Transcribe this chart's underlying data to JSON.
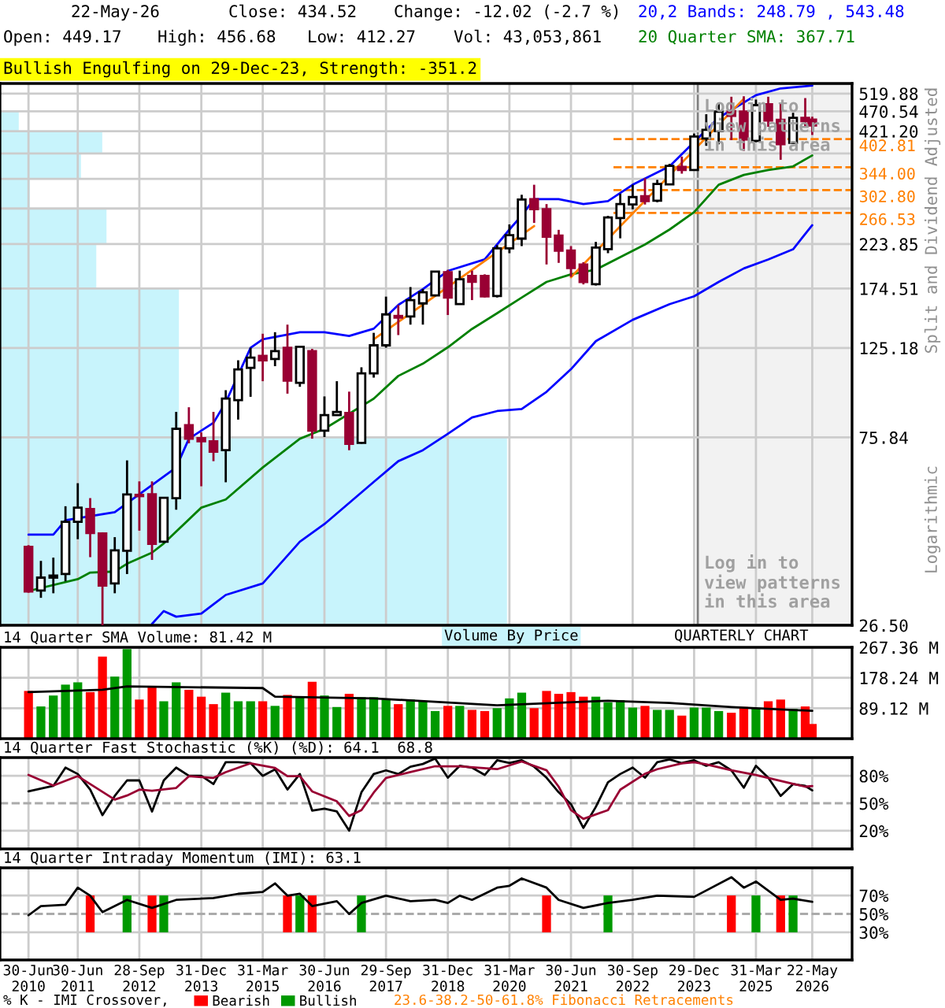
{
  "chart_data": [
    {
      "type": "candlestick",
      "log": true,
      "xlim": [
        "2009-12-01",
        "2027-03-13"
      ],
      "ylim": [
        26.5,
        550
      ],
      "yticks": [
        {
          "value": 26.5,
          "label": "26.50"
        },
        75.84,
        125.18,
        174.51,
        223.85,
        {
          "value": 273.19,
          "label": null
        },
        {
          "value": 322.53,
          "label": null
        },
        {
          "value": 371.86,
          "label": null
        },
        {
          "value": 421.2,
          "label": "421.20"
        },
        470.54,
        519.88
      ],
      "xticks": [
        "2010-06-30",
        "2011-06-30",
        "2012-09-28",
        "2013-12-31",
        "2015-03-31",
        "2016-06-30",
        "2017-09-29",
        "2018-12-31",
        "2020-03-31",
        "2021-06-30",
        "2022-09-30",
        "2023-12-29",
        "2025-03-31",
        "2026-05-22"
      ],
      "tick_labels": "y",
      "grid": true,
      "x": [
        "2010-06-30",
        "2010-09-30",
        "2010-12-31",
        "2011-03-31",
        "2011-06-30",
        "2011-09-30",
        "2011-12-30",
        "2012-03-30",
        "2012-06-29",
        "2012-09-28",
        "2012-12-31",
        "2013-03-28",
        "2013-06-28",
        "2013-09-30",
        "2013-12-31",
        "2014-03-31",
        "2014-06-30",
        "2014-09-30",
        "2014-12-31",
        "2015-03-31",
        "2015-06-30",
        "2015-09-30",
        "2015-12-31",
        "2016-03-31",
        "2016-06-30",
        "2016-09-30",
        "2016-12-30",
        "2017-03-31",
        "2017-06-30",
        "2017-09-29",
        "2017-12-29",
        "2018-03-29",
        "2018-06-29",
        "2018-09-28",
        "2018-12-31",
        "2019-03-29",
        "2019-06-28",
        "2019-09-30",
        "2019-12-31",
        "2020-03-31",
        "2020-06-30",
        "2020-09-30",
        "2020-12-31",
        "2021-03-31",
        "2021-06-30",
        "2021-09-30",
        "2021-12-31",
        "2022-03-31",
        "2022-06-30",
        "2022-09-30",
        "2022-12-30",
        "2023-03-31",
        "2023-06-30",
        "2023-09-29",
        "2023-12-29",
        "2024-03-28",
        "2024-06-28",
        "2024-09-30",
        "2024-12-31",
        "2025-03-31",
        "2025-06-30",
        "2025-09-30",
        "2025-12-31",
        "2026-03-31",
        "2026-05-22"
      ],
      "ohlc": [
        [
          41.1,
          41.5,
          31.8,
          32.0
        ],
        [
          32.2,
          38.0,
          30.9,
          34.6
        ],
        [
          34.6,
          38.7,
          31.7,
          35.0
        ],
        [
          35.3,
          51.6,
          33.9,
          47.3
        ],
        [
          47.3,
          58.7,
          42.9,
          51.2
        ],
        [
          50.8,
          54.0,
          38.8,
          44.4
        ],
        [
          44.3,
          44.6,
          26.5,
          33.1
        ],
        [
          33.5,
          43.4,
          31.7,
          40.3
        ],
        [
          40.2,
          66.7,
          35.3,
          55.1
        ],
        [
          55.0,
          59.3,
          45.0,
          54.6
        ],
        [
          55.2,
          59.3,
          38.2,
          41.8
        ],
        [
          42.3,
          54.3,
          42.0,
          54.1
        ],
        [
          54.0,
          87.5,
          50.6,
          79.6
        ],
        [
          81.2,
          89.8,
          73.4,
          75.3
        ],
        [
          75.5,
          78.0,
          57.7,
          74.2
        ],
        [
          74.2,
          87.5,
          66.4,
          70.0
        ],
        [
          70.6,
          98.8,
          59.0,
          94.3
        ],
        [
          93.4,
          116.8,
          83.8,
          111.0
        ],
        [
          112.0,
          125.3,
          95.2,
          118.5
        ],
        [
          119.7,
          135.5,
          103.9,
          116.8
        ],
        [
          117.6,
          136.7,
          113.0,
          122.9
        ],
        [
          125.3,
          142.6,
          96.9,
          104.2
        ],
        [
          103.0,
          126.5,
          100.7,
          125.9
        ],
        [
          122.9,
          124.5,
          75.3,
          78.8
        ],
        [
          78.8,
          95.4,
          76.0,
          85.9
        ],
        [
          85.9,
          103.9,
          85.6,
          87.5
        ],
        [
          87.0,
          98.0,
          70.6,
          73.2
        ],
        [
          73.6,
          112.3,
          73.2,
          108.6
        ],
        [
          108.6,
          136.2,
          106.0,
          127.0
        ],
        [
          127.0,
          166.8,
          125.3,
          151.0
        ],
        [
          149.7,
          159.2,
          134.5,
          148.3
        ],
        [
          149.3,
          176.0,
          142.6,
          163.6
        ],
        [
          160.6,
          174.1,
          142.6,
          170.9
        ],
        [
          167.9,
          192.6,
          167.1,
          191.8
        ],
        [
          191.3,
          193.8,
          150.5,
          166.0
        ],
        [
          160.0,
          192.9,
          160.0,
          183.8
        ],
        [
          187.3,
          192.9,
          163.6,
          181.3
        ],
        [
          187.3,
          189.0,
          166.0,
          167.0
        ],
        [
          167.4,
          222.5,
          166.0,
          218.6
        ],
        [
          218.6,
          249.9,
          212.7,
          235.4
        ],
        [
          230.8,
          295.0,
          221.3,
          287.1
        ],
        [
          287.9,
          312.0,
          252.0,
          272.2
        ],
        [
          272.0,
          280.0,
          199.7,
          233.2
        ],
        [
          234.8,
          242.4,
          201.5,
          215.8
        ],
        [
          215.8,
          221.3,
          186.3,
          195.8
        ],
        [
          199.7,
          202.3,
          178.6,
          181.1
        ],
        [
          178.8,
          226.6,
          177.5,
          219.5
        ],
        [
          217.5,
          262.1,
          212.7,
          259.8
        ],
        [
          258.9,
          296.7,
          231.2,
          280.0
        ],
        [
          279.3,
          312.0,
          272.0,
          291.2
        ],
        [
          292.8,
          323.8,
          279.3,
          284.6
        ],
        [
          285.4,
          320.7,
          283.0,
          313.4
        ],
        [
          312.6,
          350.8,
          312.0,
          346.7
        ],
        [
          344.9,
          365.3,
          332.0,
          338.8
        ],
        [
          338.8,
          415.6,
          338.8,
          408.6
        ],
        [
          404.0,
          463.0,
          387.9,
          424.1
        ],
        [
          421.3,
          493.5,
          391.4,
          469.8
        ],
        [
          471.2,
          510.6,
          400.7,
          458.7
        ],
        [
          469.8,
          512.0,
          377.3,
          402.0
        ],
        [
          398.8,
          502.6,
          396.0,
          487.2
        ],
        [
          489.8,
          510.6,
          431.5,
          446.7
        ],
        [
          449.0,
          493.5,
          358.8,
          391.4
        ],
        [
          394.4,
          466.8,
          392.9,
          454.0
        ],
        [
          454.0,
          506.8,
          431.5,
          445.2
        ],
        [
          449.17,
          456.68,
          412.27,
          434.52
        ]
      ],
      "series": [
        {
          "type": "line",
          "color": "#0000ff",
          "x": [
            "2010-06-30",
            "2010-12-31",
            "2011-03-31",
            "2012-03-30",
            "2012-09-28",
            "2013-06-28",
            "2013-09-30",
            "2014-03-31",
            "2014-06-30",
            "2014-12-31",
            "2015-03-31",
            "2015-12-31",
            "2016-06-30",
            "2016-12-30",
            "2017-06-30",
            "2017-12-29",
            "2018-06-29",
            "2018-12-31",
            "2019-09-30",
            "2020-03-31",
            "2020-06-30",
            "2020-09-30",
            "2021-03-31",
            "2021-09-30",
            "2022-03-31",
            "2022-09-30",
            "2023-06-30",
            "2024-06-28",
            "2025-03-31",
            "2025-09-30",
            "2026-05-22"
          ],
          "values": [
            44.0,
            44.0,
            47.7,
            49.9,
            55.2,
            64.1,
            75.3,
            82.3,
            92.3,
            125.3,
            131.4,
            136.7,
            136.7,
            133.8,
            139.4,
            159.2,
            174.0,
            192.6,
            205.4,
            242.8,
            262.8,
            287.9,
            287.9,
            280.0,
            284.8,
            312,
            345.8,
            454.0,
            515,
            535,
            543.48
          ]
        },
        {
          "type": "line",
          "color": "#008000",
          "x": [
            "2010-06-30",
            "2011-06-30",
            "2011-09-30",
            "2012-03-30",
            "2012-06-29",
            "2012-12-31",
            "2013-03-28",
            "2013-12-31",
            "2014-06-30",
            "2015-03-31",
            "2015-12-31",
            "2016-06-30",
            "2017-06-30",
            "2017-12-29",
            "2018-06-29",
            "2018-12-31",
            "2019-06-28",
            "2019-12-31",
            "2020-06-30",
            "2020-12-31",
            "2021-06-30",
            "2021-12-31",
            "2022-12-30",
            "2023-06-30",
            "2023-12-29",
            "2024-06-28",
            "2024-12-31",
            "2025-06-30",
            "2025-12-31",
            "2026-05-22"
          ],
          "values": [
            32.1,
            34.3,
            35.6,
            35.8,
            37.4,
            39.8,
            41.9,
            51.2,
            53.6,
            64.1,
            75.3,
            79.6,
            94.2,
            107.0,
            114.6,
            125.6,
            139.2,
            152.0,
            165.9,
            181.1,
            189.0,
            194,
            223.3,
            242.8,
            267.7,
            312,
            329.6,
            338.9,
            345.8,
            367.71
          ]
        },
        {
          "type": "line",
          "color": "#0000ff",
          "x": [
            "2012-12-31",
            "2013-03-28",
            "2013-06-28",
            "2013-12-31",
            "2014-06-30",
            "2015-03-31",
            "2015-12-31",
            "2016-06-30",
            "2017-06-30",
            "2017-12-29",
            "2018-06-29",
            "2018-12-31",
            "2019-06-28",
            "2019-12-31",
            "2020-06-30",
            "2020-12-31",
            "2021-06-30",
            "2021-12-31",
            "2022-09-30",
            "2023-06-30",
            "2023-12-29",
            "2024-06-28",
            "2024-12-31",
            "2025-06-30",
            "2025-12-31",
            "2026-05-22"
          ],
          "values": [
            26.7,
            28.7,
            27.8,
            28.3,
            31.4,
            33.5,
            42.3,
            46.7,
            59.1,
            66.4,
            70.6,
            77.4,
            84.8,
            87.9,
            88.9,
            97.9,
            111.1,
            130,
            146.5,
            159.9,
            167.1,
            181.1,
            195.3,
            205.4,
            217.4,
            248.79
          ]
        },
        {
          "type": "line",
          "color": "#ff8000",
          "x": [
            "2017-06-30",
            "2020-09-30"
          ],
          "values": [
            131.4,
            247.6
          ]
        },
        {
          "type": "line",
          "color": "#ff8000",
          "x": [
            "2021-06-30",
            "2024-12-31"
          ],
          "values": [
            186,
            505
          ]
        }
      ],
      "bands": [
        {
          "axis": "x",
          "from": "2024-01-25",
          "to": "2027-03-13",
          "color": "#f2f2f2"
        }
      ],
      "ref_lines": [
        {
          "axis": "y",
          "value": 402.81,
          "label": "402.81",
          "color": "#ff8000",
          "line_style": "dashed"
        },
        {
          "axis": "y",
          "value": 344.0,
          "label": "344.00",
          "color": "#ff8000",
          "line_style": "dashed"
        },
        {
          "axis": "y",
          "value": 302.8,
          "label": "302.80",
          "color": "#ff8000",
          "line_style": "dashed"
        },
        {
          "axis": "y",
          "value": 266.53,
          "label": "266.53",
          "color": "#ff8000",
          "line_style": "dashed"
        }
      ],
      "annotations": [
        "22-May-26",
        "Close: 434.52",
        "Change: -12.02 (-2.7 %)",
        "Open: 449.17",
        "High: 456.68",
        "Low: 412.27",
        "Vol: 43,053,861",
        "20,2 Bands: 248.79 , 543.48",
        "20 Quarter SMA: 367.71",
        "Bullish Engulfing on 29-Dec-23, Strength: -351.2",
        "Log in to\nview patterns\nin this area",
        "Log in to\nview patterns\nin this area",
        "Split and Dividend Adjusted",
        "Logarithmic",
        "Volume By Price"
      ]
    },
    {
      "type": "bar",
      "title": "14 Quarter SMA Volume: 81.42 M",
      "xlim": [
        "2009-12-01",
        "2027-03-13"
      ],
      "ylim": [
        0,
        267.36
      ],
      "yticks": [
        {
          "value": 89.12,
          "label": "89.12 M"
        },
        {
          "value": 178.24,
          "label": "178.24 M"
        },
        {
          "value": 267.36,
          "label": "267.36 M"
        }
      ],
      "xticks": [
        "2010-06-30",
        "2011-06-30",
        "2012-09-28",
        "2013-12-31",
        "2015-03-31",
        "2016-06-30",
        "2017-09-29",
        "2018-12-31",
        "2020-03-31",
        "2021-06-30",
        "2022-09-30",
        "2023-12-29",
        "2025-03-31",
        "2026-05-22"
      ],
      "tick_labels": "y",
      "grid": true,
      "x": [
        "2010-06-30",
        "2010-09-30",
        "2010-12-31",
        "2011-03-31",
        "2011-06-30",
        "2011-09-30",
        "2011-12-30",
        "2012-03-30",
        "2012-06-29",
        "2012-09-28",
        "2012-12-31",
        "2013-03-28",
        "2013-06-28",
        "2013-09-30",
        "2013-12-31",
        "2014-03-31",
        "2014-06-30",
        "2014-09-30",
        "2014-12-31",
        "2015-03-31",
        "2015-06-30",
        "2015-09-30",
        "2015-12-31",
        "2016-03-31",
        "2016-06-30",
        "2016-09-30",
        "2016-12-30",
        "2017-03-31",
        "2017-06-30",
        "2017-09-29",
        "2017-12-29",
        "2018-03-29",
        "2018-06-29",
        "2018-09-28",
        "2018-12-31",
        "2019-03-29",
        "2019-06-28",
        "2019-09-30",
        "2019-12-31",
        "2020-03-31",
        "2020-06-30",
        "2020-09-30",
        "2020-12-31",
        "2021-03-31",
        "2021-06-30",
        "2021-09-30",
        "2021-12-31",
        "2022-03-31",
        "2022-06-30",
        "2022-09-30",
        "2022-12-30",
        "2023-03-31",
        "2023-06-30",
        "2023-09-29",
        "2023-12-29",
        "2024-03-28",
        "2024-06-28",
        "2024-09-30",
        "2024-12-31",
        "2025-03-31",
        "2025-06-30",
        "2025-09-30",
        "2025-12-31",
        "2026-03-31",
        "2026-05-22"
      ],
      "series": [
        {
          "type": "bar",
          "values": [
            139.7,
            94.3,
            126.3,
            158.2,
            164.9,
            136.3,
            240.5,
            181.7,
            262.3,
            114.5,
            151.5,
            109.5,
            164.9,
            143.1,
            122.9,
            101.1,
            134.7,
            109.5,
            109.5,
            109.5,
            96.0,
            128.0,
            121.2,
            166.6,
            126.3,
            92.7,
            131.3,
            121.2,
            121.2,
            114.5,
            101.1,
            114.5,
            109.5,
            80.9,
            96.0,
            96.0,
            84.3,
            80.9,
            89.3,
            117.9,
            134.7,
            89.3,
            139.7,
            131.3,
            136.3,
            122.9,
            122.9,
            106.1,
            112.8,
            91.0,
            96.0,
            84.3,
            84.3,
            67.5,
            91.0,
            91.0,
            80.9,
            75.9,
            92.7,
            87.6,
            109.5,
            114.5,
            87.6,
            94.3,
            43.05
          ],
          "colors": [
            "#ff0000",
            "#009900",
            "#009900",
            "#009900",
            "#009900",
            "#ff0000",
            "#ff0000",
            "#009900",
            "#009900",
            "#ff0000",
            "#ff0000",
            "#009900",
            "#009900",
            "#ff0000",
            "#ff0000",
            "#ff0000",
            "#009900",
            "#009900",
            "#009900",
            "#ff0000",
            "#009900",
            "#ff0000",
            "#009900",
            "#ff0000",
            "#009900",
            "#009900",
            "#ff0000",
            "#009900",
            "#009900",
            "#009900",
            "#ff0000",
            "#009900",
            "#009900",
            "#009900",
            "#ff0000",
            "#009900",
            "#ff0000",
            "#ff0000",
            "#009900",
            "#009900",
            "#009900",
            "#ff0000",
            "#ff0000",
            "#ff0000",
            "#ff0000",
            "#ff0000",
            "#009900",
            "#009900",
            "#009900",
            "#009900",
            "#ff0000",
            "#009900",
            "#009900",
            "#ff0000",
            "#009900",
            "#009900",
            "#009900",
            "#ff0000",
            "#ff0000",
            "#009900",
            "#ff0000",
            "#ff0000",
            "#009900",
            "#ff0000",
            "#ff0000"
          ]
        },
        {
          "type": "line",
          "color": "#000000",
          "x": [
            "2010-06-30",
            "2011-12-30",
            "2012-06-29",
            "2015-03-31",
            "2015-06-30",
            "2017-06-30",
            "2019-12-31",
            "2022-03-31",
            "2023-06-30",
            "2024-09-30",
            "2026-05-22"
          ],
          "values": [
            136.3,
            143.1,
            153.1,
            148.1,
            122.9,
            117.9,
            97.7,
            111.1,
            104.4,
            92.7,
            81.42
          ]
        }
      ],
      "annotations": [
        "QUARTERLY CHART"
      ]
    },
    {
      "type": "line",
      "title": "14 Quarter Fast Stochastic (%K) (%D): 64.1  68.8",
      "xlim": [
        "2009-12-01",
        "2027-03-13"
      ],
      "ylim": [
        0,
        100
      ],
      "yticks": [
        {
          "value": 20,
          "label": "20%"
        },
        {
          "value": 50,
          "label": "50%"
        },
        {
          "value": 80,
          "label": "80%"
        }
      ],
      "xticks": [
        "2010-06-30",
        "2011-06-30",
        "2012-09-28",
        "2013-12-31",
        "2015-03-31",
        "2016-06-30",
        "2017-09-29",
        "2018-12-31",
        "2020-03-31",
        "2021-06-30",
        "2022-09-30",
        "2023-12-29",
        "2025-03-31",
        "2026-05-22"
      ],
      "tick_labels": "y",
      "grid": true,
      "ref_lines": [
        {
          "axis": "y",
          "value": 50,
          "color": "#aaaaaa",
          "line_style": "dashed"
        }
      ],
      "x": [
        "2010-06-30",
        "2010-09-30",
        "2010-12-31",
        "2011-03-31",
        "2011-06-30",
        "2011-09-30",
        "2011-12-30",
        "2012-03-30",
        "2012-06-29",
        "2012-09-28",
        "2012-12-31",
        "2013-03-28",
        "2013-06-28",
        "2013-09-30",
        "2013-12-31",
        "2014-03-31",
        "2014-06-30",
        "2014-09-30",
        "2014-12-31",
        "2015-03-31",
        "2015-06-30",
        "2015-09-30",
        "2015-12-31",
        "2016-03-31",
        "2016-06-30",
        "2016-09-30",
        "2016-12-30",
        "2017-03-31",
        "2017-06-30",
        "2017-09-29",
        "2017-12-29",
        "2018-03-29",
        "2018-06-29",
        "2018-09-28",
        "2018-12-31",
        "2019-03-29",
        "2019-06-28",
        "2019-09-30",
        "2019-12-31",
        "2020-03-31",
        "2020-06-30",
        "2020-09-30",
        "2020-12-31",
        "2021-03-31",
        "2021-06-30",
        "2021-09-30",
        "2021-12-31",
        "2022-03-31",
        "2022-06-30",
        "2022-09-30",
        "2022-12-30",
        "2023-03-31",
        "2023-06-30",
        "2023-09-29",
        "2023-12-29",
        "2024-03-28",
        "2024-06-28",
        "2024-09-30",
        "2024-12-31",
        "2025-03-31",
        "2025-06-30",
        "2025-09-30",
        "2025-12-31",
        "2026-03-31",
        "2026-05-22"
      ],
      "series": [
        {
          "type": "line",
          "color": "#000000",
          "values": [
            63,
            66,
            69,
            89,
            82,
            65,
            37,
            58,
            75,
            75,
            41,
            75,
            89,
            80,
            80,
            71,
            95,
            95,
            94,
            80,
            87,
            65,
            82,
            42,
            44,
            41,
            20,
            62,
            82,
            86,
            82,
            90,
            93,
            99,
            78,
            91,
            89,
            81,
            97,
            94,
            97,
            90,
            78,
            62,
            49,
            23,
            46,
            73,
            82,
            89,
            78,
            95,
            98,
            94,
            97,
            91,
            95,
            86,
            67,
            91,
            78,
            58,
            71,
            69,
            64.1
          ]
        },
        {
          "type": "line",
          "color": "#990033",
          "x": [
            "2010-06-30",
            "2010-12-31",
            "2011-06-30",
            "2012-03-30",
            "2012-06-29",
            "2012-09-28",
            "2012-12-31",
            "2013-06-28",
            "2013-09-30",
            "2014-03-31",
            "2014-06-30",
            "2014-12-31",
            "2015-06-30",
            "2015-09-30",
            "2015-12-31",
            "2016-03-31",
            "2016-09-30",
            "2016-12-30",
            "2017-03-31",
            "2017-06-30",
            "2017-09-29",
            "2018-03-29",
            "2018-09-28",
            "2019-03-29",
            "2019-12-31",
            "2020-06-30",
            "2020-12-31",
            "2021-03-31",
            "2021-06-30",
            "2021-09-30",
            "2022-03-31",
            "2022-06-30",
            "2022-12-30",
            "2023-03-31",
            "2023-09-29",
            "2023-12-29",
            "2024-03-28",
            "2024-09-30",
            "2025-03-31",
            "2025-06-30",
            "2025-12-31",
            "2026-03-31",
            "2026-05-22"
          ],
          "values": [
            81,
            69.4,
            79.7,
            54,
            58.5,
            64.9,
            63.6,
            66.8,
            79.6,
            77.7,
            84.1,
            93.7,
            88.6,
            79.7,
            79.7,
            63,
            52.1,
            36.1,
            42.5,
            61.7,
            77.7,
            84.1,
            90.5,
            90.5,
            87.3,
            95.7,
            86.1,
            68.1,
            42.5,
            32.9,
            42.5,
            64.9,
            82.2,
            87.3,
            93.7,
            95.0,
            92.5,
            86.1,
            80.9,
            77.7,
            71.3,
            68.1,
            68.8
          ]
        }
      ]
    },
    {
      "type": "line",
      "title": "14 Quarter Intraday Momentum (IMI): 63.1",
      "xlim": [
        "2009-12-01",
        "2027-03-13"
      ],
      "ylim": [
        0,
        100
      ],
      "yticks": [
        {
          "value": 30,
          "label": "30%"
        },
        {
          "value": 50,
          "label": "50%"
        },
        {
          "value": 70,
          "label": "70%"
        }
      ],
      "xticks": [
        {
          "value": "2010-06-30",
          "label": "30-Jun\n2010"
        },
        {
          "value": "2011-06-30",
          "label": "30-Jun\n2011"
        },
        {
          "value": "2012-09-28",
          "label": "28-Sep\n2012"
        },
        {
          "value": "2013-12-31",
          "label": "31-Dec\n2013"
        },
        {
          "value": "2015-03-31",
          "label": "31-Mar\n2015"
        },
        {
          "value": "2016-06-30",
          "label": "30-Jun\n2016"
        },
        {
          "value": "2017-09-29",
          "label": "29-Sep\n2017"
        },
        {
          "value": "2018-12-31",
          "label": "31-Dec\n2018"
        },
        {
          "value": "2020-03-31",
          "label": "31-Mar\n2020"
        },
        {
          "value": "2021-06-30",
          "label": "30-Jun\n2021"
        },
        {
          "value": "2022-09-30",
          "label": "30-Sep\n2022"
        },
        {
          "value": "2023-12-29",
          "label": "29-Dec\n2023"
        },
        {
          "value": "2025-03-31",
          "label": "31-Mar\n2025"
        },
        {
          "value": "2026-05-22",
          "label": "22-May\n2026"
        }
      ],
      "grid": true,
      "legend": "bottom",
      "ref_lines": [
        {
          "axis": "y",
          "value": 50,
          "color": "#aaaaaa",
          "line_style": "dashed"
        }
      ],
      "series": [
        {
          "type": "bar",
          "name": "Bearish",
          "color": "#ff0000",
          "x": [
            "2011-09-30",
            "2012-12-31",
            "2015-09-30",
            "2016-03-31",
            "2020-12-31",
            "2024-09-30",
            "2025-09-30"
          ],
          "base": [
            30,
            30,
            30,
            30,
            30,
            30,
            30
          ],
          "values": [
            40,
            40,
            40,
            40,
            40,
            40,
            40
          ]
        },
        {
          "type": "bar",
          "name": "Bullish",
          "color": "#009900",
          "x": [
            "2012-06-29",
            "2013-03-28",
            "2015-12-31",
            "2017-03-31",
            "2022-03-31",
            "2025-03-31",
            "2025-12-31"
          ],
          "base": [
            30,
            30,
            30,
            30,
            30,
            30,
            30
          ],
          "values": [
            40,
            40,
            40,
            40,
            40,
            40,
            40
          ]
        },
        {
          "type": "line",
          "color": "#000000",
          "x": [
            "2010-06-30",
            "2010-09-30",
            "2011-03-31",
            "2011-06-30",
            "2011-09-30",
            "2011-12-30",
            "2012-06-29",
            "2012-12-31",
            "2013-06-28",
            "2014-03-31",
            "2014-09-30",
            "2015-03-31",
            "2015-06-30",
            "2015-09-30",
            "2015-12-31",
            "2016-03-31",
            "2016-09-30",
            "2016-12-30",
            "2017-03-31",
            "2017-09-29",
            "2018-03-29",
            "2018-09-28",
            "2018-12-31",
            "2019-03-29",
            "2019-06-28",
            "2019-12-31",
            "2020-03-31",
            "2020-06-30",
            "2020-12-31",
            "2021-03-31",
            "2021-09-30",
            "2022-03-31",
            "2022-09-30",
            "2023-03-31",
            "2023-12-29",
            "2024-09-30",
            "2024-12-31",
            "2025-03-31",
            "2025-09-30",
            "2025-12-31",
            "2026-05-22"
          ],
          "values": [
            48.5,
            58.5,
            59.9,
            78.5,
            69.8,
            51.9,
            65.2,
            56.5,
            65.2,
            67.2,
            71.8,
            73.8,
            83.1,
            69.8,
            71.8,
            58.5,
            63.8,
            49.9,
            61.8,
            69.8,
            63.8,
            65.2,
            61.8,
            69.8,
            65.2,
            78.5,
            80.5,
            88.5,
            78.5,
            65.2,
            56.5,
            61.8,
            65.2,
            69.8,
            68.5,
            89.8,
            78.5,
            85.1,
            65.2,
            66.5,
            63.1
          ]
        }
      ],
      "annotations": [
        "% K - IMI Crossover,",
        "23.6-38.2-50-61.8% Fibonacci Retracements"
      ]
    }
  ]
}
